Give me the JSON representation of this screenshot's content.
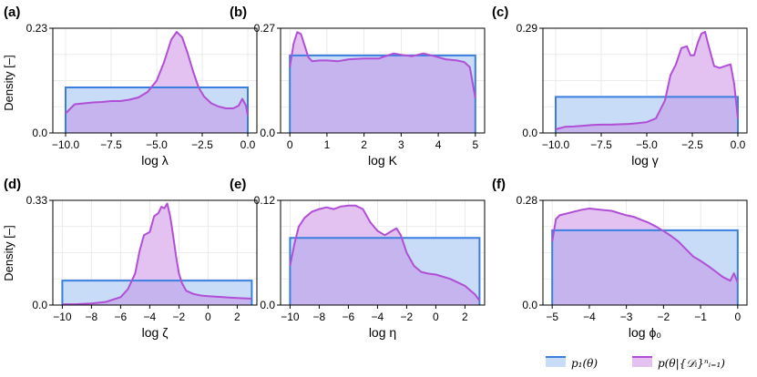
{
  "legend": {
    "prior_label": "p₁(θ)",
    "posterior_label": "p(θ|{𝒟ᵢ}ⁿᵢ₌₁)",
    "prior_color": "#3a7fe0",
    "prior_fill": "#c9dcf7",
    "posterior_color": "#b04fd6",
    "posterior_fill": "#e3c2f1",
    "overlap_fill": "#c6b4ef"
  },
  "ylabel": "Density [–]",
  "chart_data": [
    {
      "type": "area",
      "label": "(a)",
      "xlabel": "log λ",
      "xlim": [
        -10.7,
        0.5
      ],
      "xticks": [
        -10.0,
        -7.5,
        -5.0,
        -2.5,
        0.0
      ],
      "xtick_labels": [
        "−10.0",
        "−7.5",
        "−5.0",
        "−2.5",
        "0.0"
      ],
      "ylim": [
        0,
        0.23
      ],
      "yticks": [
        0,
        0.23
      ],
      "ytick_labels": [
        "0.0",
        "0.23"
      ],
      "prior": {
        "x": [
          -10.0,
          0.0
        ],
        "value": 0.1
      },
      "posterior": {
        "x": [
          -10,
          -9.5,
          -9,
          -8.5,
          -8,
          -7.5,
          -7,
          -6.5,
          -6,
          -5.5,
          -5,
          -4.6,
          -4.2,
          -3.9,
          -3.6,
          -3.3,
          -3,
          -2.7,
          -2.4,
          -2,
          -1.6,
          -1.2,
          -0.8,
          -0.5,
          -0.3,
          -0.1,
          0
        ],
        "y": [
          0.043,
          0.063,
          0.065,
          0.067,
          0.068,
          0.07,
          0.07,
          0.073,
          0.078,
          0.09,
          0.115,
          0.155,
          0.205,
          0.222,
          0.21,
          0.175,
          0.135,
          0.1,
          0.08,
          0.065,
          0.058,
          0.054,
          0.054,
          0.06,
          0.075,
          0.06,
          0.038
        ]
      }
    },
    {
      "type": "area",
      "label": "(b)",
      "xlabel": "log K",
      "xlim": [
        -0.25,
        5.25
      ],
      "xticks": [
        0,
        1,
        2,
        3,
        4,
        5
      ],
      "xtick_labels": [
        "0",
        "1",
        "2",
        "3",
        "4",
        "5"
      ],
      "ylim": [
        0,
        0.27
      ],
      "yticks": [
        0,
        0.27
      ],
      "ytick_labels": [
        "0.0",
        "0.27"
      ],
      "prior": {
        "x": [
          0,
          5
        ],
        "value": 0.2
      },
      "posterior": {
        "x": [
          0,
          0.1,
          0.2,
          0.3,
          0.4,
          0.5,
          0.6,
          0.8,
          1,
          1.3,
          1.6,
          2,
          2.4,
          2.8,
          3.1,
          3.3,
          3.6,
          3.9,
          4.2,
          4.5,
          4.7,
          4.85,
          5
        ],
        "y": [
          0.17,
          0.23,
          0.26,
          0.255,
          0.225,
          0.195,
          0.185,
          0.187,
          0.187,
          0.185,
          0.19,
          0.192,
          0.192,
          0.205,
          0.2,
          0.198,
          0.205,
          0.198,
          0.19,
          0.187,
          0.183,
          0.17,
          0.09
        ]
      }
    },
    {
      "type": "area",
      "label": "(c)",
      "xlabel": "log γ",
      "xlim": [
        -10.7,
        0.5
      ],
      "xticks": [
        -10.0,
        -7.5,
        -5.0,
        -2.5,
        0.0
      ],
      "xtick_labels": [
        "−10.0",
        "−7.5",
        "−5.0",
        "−2.5",
        "0.0"
      ],
      "ylim": [
        0,
        0.29
      ],
      "yticks": [
        0,
        0.29
      ],
      "ytick_labels": [
        "0.0",
        "0.29"
      ],
      "prior": {
        "x": [
          -10.0,
          0.0
        ],
        "value": 0.1
      },
      "posterior": {
        "x": [
          -10,
          -9.5,
          -9,
          -8.5,
          -8,
          -7.5,
          -7,
          -6.5,
          -6,
          -5.5,
          -5,
          -4.5,
          -4,
          -3.7,
          -3.4,
          -3.1,
          -2.8,
          -2.6,
          -2.4,
          -2.2,
          -2,
          -1.8,
          -1.6,
          -1.3,
          -1,
          -0.7,
          -0.4,
          -0.2,
          0
        ],
        "y": [
          0.01,
          0.017,
          0.018,
          0.02,
          0.022,
          0.023,
          0.023,
          0.024,
          0.025,
          0.027,
          0.03,
          0.04,
          0.09,
          0.16,
          0.19,
          0.235,
          0.24,
          0.215,
          0.215,
          0.25,
          0.275,
          0.28,
          0.24,
          0.185,
          0.18,
          0.185,
          0.19,
          0.135,
          0.04
        ]
      }
    },
    {
      "type": "area",
      "label": "(d)",
      "xlabel": "log ζ",
      "xlim": [
        -10.65,
        3.35
      ],
      "xticks": [
        -10,
        -8,
        -6,
        -4,
        -2,
        0,
        2
      ],
      "xtick_labels": [
        "−10",
        "−8",
        "−6",
        "−4",
        "−2",
        "0",
        "2"
      ],
      "ylim": [
        0,
        0.33
      ],
      "yticks": [
        0,
        0.33
      ],
      "ytick_labels": [
        "0.0",
        "0.33"
      ],
      "prior": {
        "x": [
          -10,
          3
        ],
        "value": 0.077
      },
      "posterior": {
        "x": [
          -10,
          -9,
          -8,
          -7,
          -6,
          -5.5,
          -5,
          -4.7,
          -4.4,
          -4,
          -3.7,
          -3.4,
          -3.2,
          -3,
          -2.8,
          -2.6,
          -2.4,
          -2.2,
          -2,
          -1.8,
          -1.5,
          -1,
          -0.5,
          0,
          1,
          2,
          3
        ],
        "y": [
          0.002,
          0.003,
          0.005,
          0.01,
          0.025,
          0.05,
          0.1,
          0.17,
          0.22,
          0.23,
          0.28,
          0.29,
          0.31,
          0.305,
          0.32,
          0.28,
          0.22,
          0.155,
          0.1,
          0.07,
          0.045,
          0.035,
          0.03,
          0.028,
          0.025,
          0.022,
          0.02
        ]
      }
    },
    {
      "type": "area",
      "label": "(e)",
      "xlabel": "log η",
      "xlim": [
        -10.65,
        3.35
      ],
      "xticks": [
        -10,
        -8,
        -6,
        -4,
        -2,
        0,
        2
      ],
      "xtick_labels": [
        "−10",
        "−8",
        "−6",
        "−4",
        "−2",
        "0",
        "2"
      ],
      "ylim": [
        0,
        0.12
      ],
      "yticks": [
        0,
        0.12
      ],
      "ytick_labels": [
        "0.0",
        "0.12"
      ],
      "prior": {
        "x": [
          -10,
          3
        ],
        "value": 0.077
      },
      "posterior": {
        "x": [
          -10,
          -9.7,
          -9.4,
          -9,
          -8.5,
          -8,
          -7.5,
          -7,
          -6.5,
          -6,
          -5.5,
          -5,
          -4.5,
          -4,
          -3.5,
          -3,
          -2.7,
          -2.4,
          -2,
          -1.5,
          -1,
          -0.5,
          0,
          1,
          2,
          2.7,
          3
        ],
        "y": [
          0.045,
          0.07,
          0.09,
          0.1,
          0.107,
          0.11,
          0.112,
          0.11,
          0.113,
          0.114,
          0.114,
          0.11,
          0.095,
          0.085,
          0.08,
          0.085,
          0.088,
          0.08,
          0.06,
          0.045,
          0.038,
          0.036,
          0.035,
          0.03,
          0.022,
          0.012,
          0.005
        ]
      }
    },
    {
      "type": "area",
      "label": "(f)",
      "xlabel": "log ϕ₀",
      "xlim": [
        -5.25,
        0.25
      ],
      "xticks": [
        -5,
        -4,
        -3,
        -2,
        -1,
        0
      ],
      "xtick_labels": [
        "−5",
        "−4",
        "−3",
        "−2",
        "−1",
        "0"
      ],
      "ylim": [
        0,
        0.28
      ],
      "yticks": [
        0,
        0.28
      ],
      "ytick_labels": [
        "0.0",
        "0.28"
      ],
      "prior": {
        "x": [
          -5,
          0
        ],
        "value": 0.2
      },
      "posterior": {
        "x": [
          -5,
          -4.9,
          -4.8,
          -4.6,
          -4.4,
          -4.2,
          -4,
          -3.8,
          -3.6,
          -3.4,
          -3.2,
          -3,
          -2.8,
          -2.6,
          -2.4,
          -2.2,
          -2,
          -1.8,
          -1.6,
          -1.4,
          -1.2,
          -1,
          -0.8,
          -0.6,
          -0.4,
          -0.2,
          -0.1,
          0
        ],
        "y": [
          0.17,
          0.23,
          0.24,
          0.245,
          0.25,
          0.255,
          0.258,
          0.256,
          0.254,
          0.252,
          0.246,
          0.24,
          0.236,
          0.228,
          0.22,
          0.21,
          0.198,
          0.185,
          0.17,
          0.15,
          0.13,
          0.118,
          0.105,
          0.09,
          0.075,
          0.065,
          0.085,
          0.06
        ]
      }
    }
  ]
}
